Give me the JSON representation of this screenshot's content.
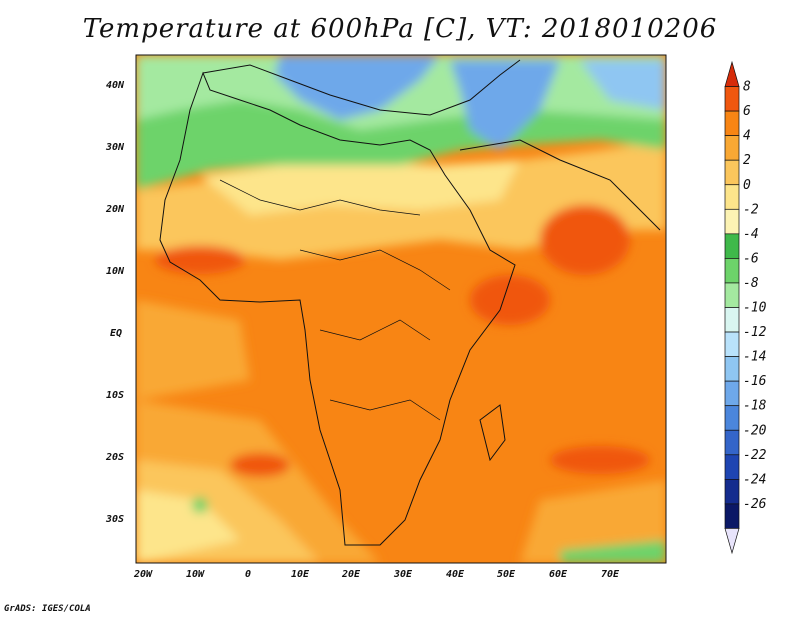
{
  "title": "Temperature at 600hPa [C], VT: 2018010206",
  "credit": "GrADS: IGES/COLA",
  "map": {
    "region": "Africa",
    "lat_labels": [
      "40N",
      "30N",
      "20N",
      "10N",
      "EQ",
      "10S",
      "20S",
      "30S"
    ],
    "lon_labels": [
      "20W",
      "10W",
      "0",
      "10E",
      "20E",
      "30E",
      "40E",
      "50E",
      "60E",
      "70E"
    ]
  },
  "colorbar": {
    "levels": [
      "8",
      "6",
      "4",
      "2",
      "0",
      "-2",
      "-4",
      "-6",
      "-8",
      "-10",
      "-12",
      "-14",
      "-16",
      "-18",
      "-20",
      "-22",
      "-24",
      "-26"
    ],
    "colors": [
      "#d62c0a",
      "#f0570f",
      "#f88514",
      "#f9a834",
      "#fbc65c",
      "#fde58b",
      "#fcf3b4",
      "#3fb94a",
      "#6dd36a",
      "#a4e9a0",
      "#d9f6f1",
      "#b9e2fb",
      "#8fc6f2",
      "#6ea8ea",
      "#4b86dc",
      "#3465c9",
      "#1e45b2",
      "#142c8e",
      "#0b1866",
      "#e8e4fb"
    ]
  }
}
